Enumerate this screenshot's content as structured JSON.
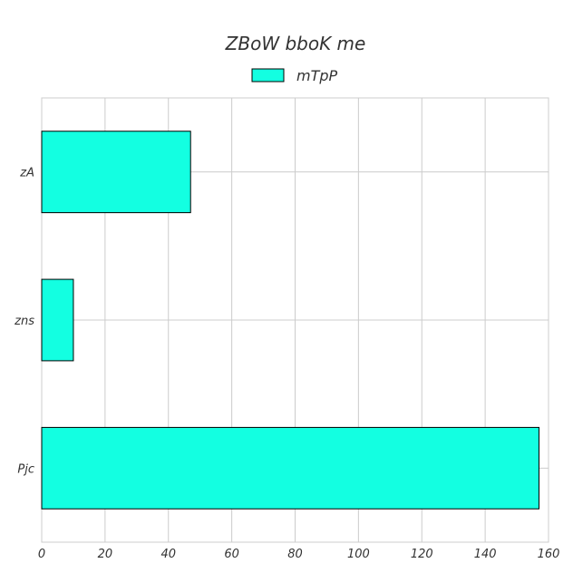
{
  "chart_data": {
    "type": "bar",
    "orientation": "horizontal",
    "title": "ZBoW bboK me",
    "xlabel": "",
    "ylabel": "",
    "categories": [
      "zA",
      "zns",
      "Pjc"
    ],
    "series": [
      {
        "name": "mTpP",
        "values": [
          47,
          10,
          157
        ],
        "color": "#13ffe1"
      }
    ],
    "xlim": [
      0,
      160
    ],
    "x_ticks": [
      0,
      20,
      40,
      60,
      80,
      100,
      120,
      140,
      160
    ],
    "grid": true,
    "legend_position": "top-center"
  },
  "colors": {
    "bar_fill": "#13ffe1",
    "bar_stroke": "#000000",
    "grid": "#cccccc",
    "text": "#333333"
  }
}
